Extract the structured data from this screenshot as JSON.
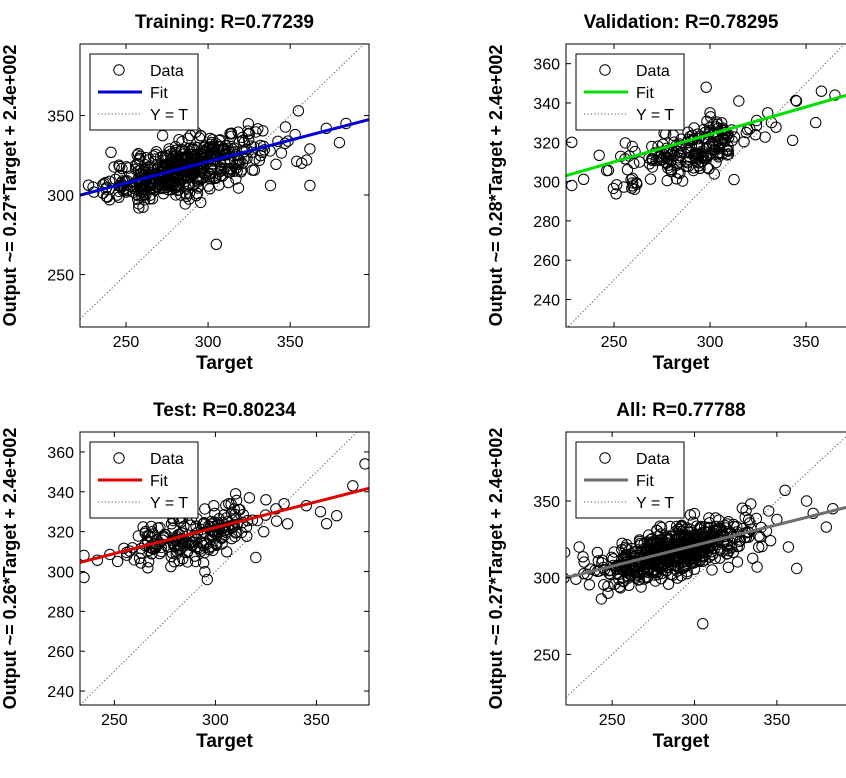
{
  "figure": {
    "layout": "2x2 grid of regression panels"
  },
  "chart_data": [
    {
      "type": "scatter",
      "title": "Training: R=0.77239",
      "xlabel": "Target",
      "ylabel": "Output ~= 0.27*Target + 2.4e+002",
      "xlim": [
        222,
        398
      ],
      "ylim": [
        217,
        395
      ],
      "xticks": [
        250,
        300,
        350
      ],
      "yticks": [
        250,
        300,
        350
      ],
      "grid": false,
      "legend_position": "top-left",
      "legend": [
        {
          "label": "Data",
          "kind": "marker"
        },
        {
          "label": "Fit",
          "kind": "line"
        },
        {
          "label": "Y = T",
          "kind": "dotted"
        }
      ],
      "fit": {
        "slope": 0.27,
        "intercept": 240,
        "color": "#0000d8"
      },
      "cloud": {
        "cx": 285,
        "cy": 317,
        "sx": 23,
        "sy": 8,
        "n": 520
      },
      "points": [
        [
          305,
          269
        ],
        [
          362,
          306
        ],
        [
          357,
          320
        ],
        [
          372,
          342
        ],
        [
          384,
          345
        ],
        [
          362,
          329
        ],
        [
          338,
          306
        ],
        [
          355,
          353
        ],
        [
          353,
          338
        ],
        [
          380,
          333
        ],
        [
          360,
          322
        ],
        [
          230,
          305
        ],
        [
          240,
          297
        ]
      ],
      "series": [
        {
          "name": "Data",
          "marker": "open-circle",
          "color": "#000000"
        }
      ]
    },
    {
      "type": "scatter",
      "title": "Validation: R=0.78295",
      "xlabel": "Target",
      "ylabel": "Output ~= 0.28*Target + 2.4e+002",
      "xlim": [
        225,
        376
      ],
      "ylim": [
        226,
        370
      ],
      "xticks": [
        250,
        300,
        350
      ],
      "yticks": [
        240,
        260,
        280,
        300,
        320,
        340,
        360
      ],
      "grid": false,
      "legend_position": "top-left",
      "legend": [
        {
          "label": "Data",
          "kind": "marker"
        },
        {
          "label": "Fit",
          "kind": "line"
        },
        {
          "label": "Y = T",
          "kind": "dotted"
        }
      ],
      "fit": {
        "slope": 0.28,
        "intercept": 240,
        "color": "#00e000"
      },
      "cloud": {
        "cx": 290,
        "cy": 316,
        "sx": 18,
        "sy": 6,
        "n": 210
      },
      "points": [
        [
          228,
          320
        ],
        [
          228,
          298
        ],
        [
          298,
          348
        ],
        [
          315,
          341
        ],
        [
          330,
          335
        ],
        [
          345,
          341
        ],
        [
          358,
          346
        ],
        [
          365,
          344
        ],
        [
          355,
          330
        ],
        [
          343,
          321
        ],
        [
          332,
          330
        ],
        [
          300,
          335
        ]
      ],
      "series": [
        {
          "name": "Data",
          "marker": "open-circle",
          "color": "#000000"
        }
      ]
    },
    {
      "type": "scatter",
      "title": "Test: R=0.80234",
      "xlabel": "Target",
      "ylabel": "Output ~= 0.26*Target + 2.4e+002",
      "xlim": [
        233,
        376
      ],
      "ylim": [
        233,
        370
      ],
      "xticks": [
        250,
        300,
        350
      ],
      "yticks": [
        240,
        260,
        280,
        300,
        320,
        340,
        360
      ],
      "grid": false,
      "legend_position": "top-left",
      "legend": [
        {
          "label": "Data",
          "kind": "marker"
        },
        {
          "label": "Fit",
          "kind": "line"
        },
        {
          "label": "Y = T",
          "kind": "dotted"
        }
      ],
      "fit": {
        "slope": 0.26,
        "intercept": 244,
        "color": "#e00000"
      },
      "cloud": {
        "cx": 290,
        "cy": 318,
        "sx": 18,
        "sy": 6,
        "n": 210
      },
      "points": [
        [
          235,
          308
        ],
        [
          235,
          297
        ],
        [
          296,
          296
        ],
        [
          320,
          307
        ],
        [
          310,
          339
        ],
        [
          325,
          336
        ],
        [
          334,
          334
        ],
        [
          345,
          333
        ],
        [
          352,
          330
        ],
        [
          355,
          324
        ],
        [
          368,
          343
        ],
        [
          374,
          354
        ],
        [
          360,
          328
        ]
      ],
      "series": [
        {
          "name": "Data",
          "marker": "open-circle",
          "color": "#000000"
        }
      ]
    },
    {
      "type": "scatter",
      "title": "All: R=0.77788",
      "xlabel": "Target",
      "ylabel": "Output ~= 0.27*Target + 2.4e+002",
      "xlim": [
        222,
        398
      ],
      "ylim": [
        217,
        395
      ],
      "xticks": [
        250,
        300,
        350
      ],
      "yticks": [
        250,
        300,
        350
      ],
      "grid": false,
      "legend_position": "top-left",
      "legend": [
        {
          "label": "Data",
          "kind": "marker"
        },
        {
          "label": "Fit",
          "kind": "line"
        },
        {
          "label": "Y = T",
          "kind": "dotted"
        }
      ],
      "fit": {
        "slope": 0.27,
        "intercept": 240,
        "color": "#6e6e6e"
      },
      "cloud": {
        "cx": 287,
        "cy": 317,
        "sx": 23,
        "sy": 8,
        "n": 600
      },
      "points": [
        [
          305,
          270
        ],
        [
          362,
          306
        ],
        [
          357,
          320
        ],
        [
          372,
          342
        ],
        [
          384,
          345
        ],
        [
          355,
          357
        ],
        [
          338,
          307
        ],
        [
          380,
          333
        ],
        [
          350,
          338
        ],
        [
          230,
          320
        ],
        [
          228,
          299
        ],
        [
          368,
          350
        ]
      ],
      "series": [
        {
          "name": "Data",
          "marker": "open-circle",
          "color": "#000000"
        }
      ]
    }
  ]
}
